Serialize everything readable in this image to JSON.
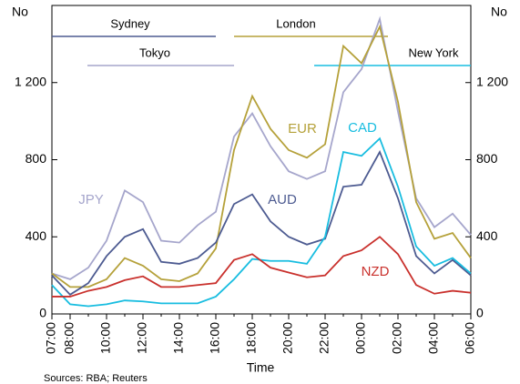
{
  "chart_data": {
    "type": "line",
    "y_label": "No",
    "y2_label": "No",
    "x_label": "Time",
    "source": "Sources: RBA; Reuters",
    "categories": [
      "07:00",
      "08:00",
      null,
      "10:00",
      null,
      "12:00",
      null,
      "14:00",
      null,
      "16:00",
      null,
      "18:00",
      null,
      "20:00",
      null,
      "22:00",
      null,
      "00:00",
      null,
      "02:00",
      null,
      "04:00",
      null,
      "06:00"
    ],
    "series": [
      {
        "name": "JPY",
        "color": "#a6a6cc",
        "values": [
          210,
          180,
          240,
          380,
          640,
          580,
          380,
          370,
          460,
          530,
          920,
          1040,
          870,
          740,
          700,
          740,
          1150,
          1270,
          1530,
          1050,
          600,
          450,
          520,
          410
        ]
      },
      {
        "name": "EUR",
        "color": "#b5a13a",
        "values": [
          210,
          140,
          140,
          180,
          290,
          250,
          180,
          170,
          210,
          340,
          850,
          1130,
          960,
          850,
          810,
          880,
          1390,
          1300,
          1490,
          1100,
          580,
          390,
          420,
          290
        ]
      },
      {
        "name": "AUD",
        "color": "#4d5b91",
        "values": [
          200,
          100,
          160,
          300,
          400,
          440,
          270,
          260,
          290,
          370,
          570,
          620,
          480,
          400,
          360,
          390,
          660,
          670,
          840,
          600,
          300,
          210,
          280,
          200
        ]
      },
      {
        "name": "CAD",
        "color": "#18bde0",
        "values": [
          150,
          50,
          40,
          50,
          70,
          65,
          55,
          55,
          55,
          90,
          180,
          285,
          275,
          275,
          260,
          400,
          840,
          820,
          910,
          660,
          350,
          250,
          290,
          210
        ]
      },
      {
        "name": "NZD",
        "color": "#c9302c",
        "values": [
          90,
          90,
          120,
          140,
          175,
          195,
          140,
          140,
          150,
          160,
          280,
          310,
          240,
          215,
          190,
          200,
          300,
          330,
          400,
          310,
          150,
          105,
          120,
          110
        ]
      }
    ],
    "sessions": [
      {
        "name": "Sydney",
        "color": "#4d5b91"
      },
      {
        "name": "Tokyo",
        "color": "#a6a6cc"
      },
      {
        "name": "London",
        "color": "#b5a13a"
      },
      {
        "name": "New York",
        "color": "#18bde0"
      }
    ],
    "ylim": [
      0,
      1600
    ],
    "yticks": [
      0,
      400,
      800,
      {
        "value": 1200,
        "label": "1 200"
      }
    ],
    "y2lim": [
      0,
      1600
    ],
    "y2ticks": [
      0,
      400,
      800,
      {
        "value": 1200,
        "label": "1 200"
      }
    ]
  }
}
